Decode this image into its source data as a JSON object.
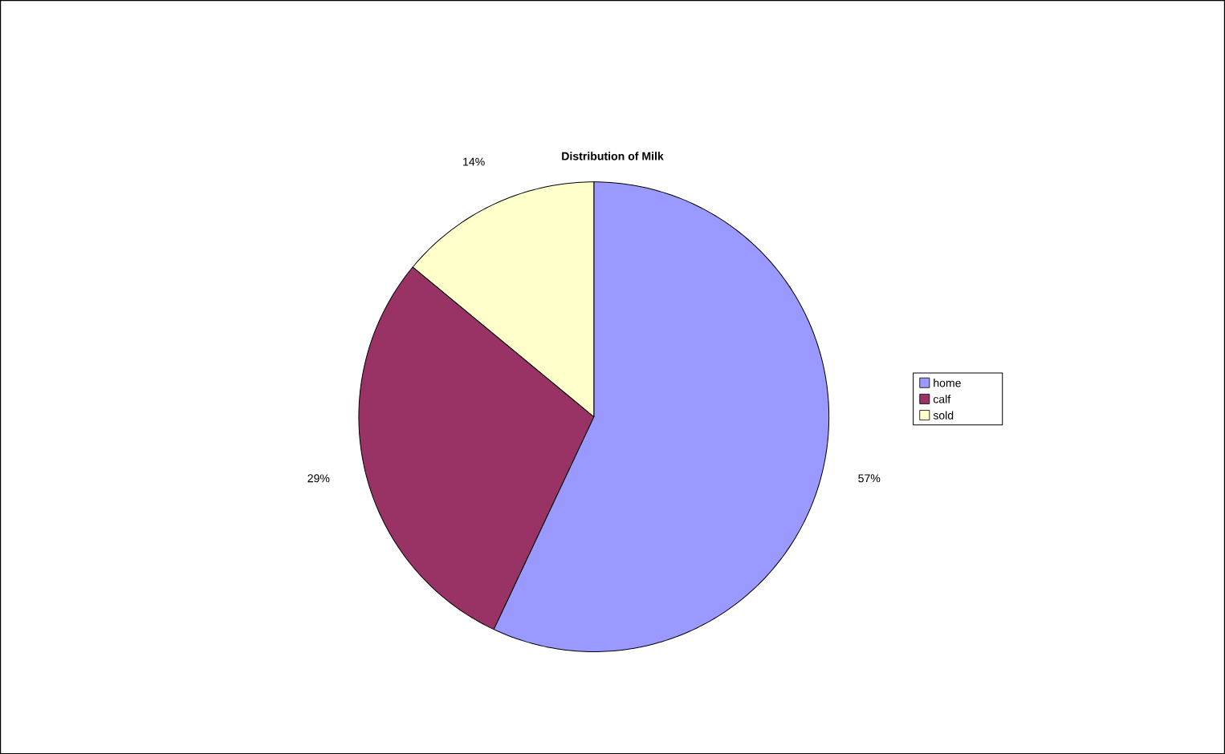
{
  "chart_data": {
    "type": "pie",
    "title": "Distribution of Milk",
    "categories": [
      "home",
      "calf",
      "sold"
    ],
    "values": [
      57,
      29,
      14
    ],
    "value_labels": [
      "57%",
      "29%",
      "14%"
    ],
    "colors": [
      "#9999ff",
      "#993366",
      "#ffffcc"
    ],
    "legend": "right"
  }
}
